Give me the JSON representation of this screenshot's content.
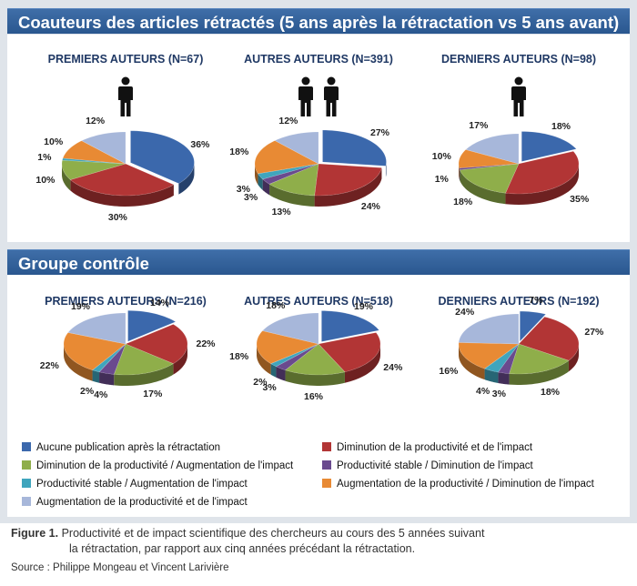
{
  "sections": {
    "retracted_title": "Coauteurs des articles rétractés (5 ans après la rétractation vs 5 ans avant)",
    "control_title": "Groupe contrôle"
  },
  "colors": [
    "#3b68ac",
    "#b23535",
    "#8fae4a",
    "#6a4a8e",
    "#3fa5bd",
    "#e88a34",
    "#a7b7da"
  ],
  "legend": [
    "Aucune publication après la rétractation",
    "Diminution de la productivité et de l'impact",
    "Diminution de la productivité / Augmentation de l'impact",
    "Productivité stable / Diminution de l'impact",
    "Productivité stable / Augmentation de l'impact",
    "Augmentation de la productivité / Diminution de l'impact",
    "Augmentation de la productivité et de l'impact"
  ],
  "chart_data": [
    {
      "type": "pie",
      "group": "Coauteurs des articles rétractés",
      "title": "PREMIERS AUTEURS (N=67)",
      "persons": 1,
      "values": [
        36,
        30,
        10,
        0,
        1,
        10,
        12
      ],
      "labels": [
        "36%",
        "30%",
        "10%",
        "",
        "1%",
        "10%",
        "12%"
      ]
    },
    {
      "type": "pie",
      "group": "Coauteurs des articles rétractés",
      "title": "AUTRES AUTEURS (N=391)",
      "persons": 2,
      "values": [
        27,
        24,
        13,
        3,
        3,
        18,
        12
      ],
      "labels": [
        "27%",
        "24%",
        "13%",
        "3%",
        "3%",
        "18%",
        "12%"
      ]
    },
    {
      "type": "pie",
      "group": "Coauteurs des articles rétractés",
      "title": "DERNIERS AUTEURS (N=98)",
      "persons": 1,
      "values": [
        18,
        35,
        18,
        1,
        0,
        10,
        17
      ],
      "labels": [
        "18%",
        "35%",
        "18%",
        "1%",
        "",
        "10%",
        "17%"
      ]
    },
    {
      "type": "pie",
      "group": "Groupe contrôle",
      "title": "PREMIERS AUTEURS (N=216)",
      "persons": 0,
      "values": [
        14,
        22,
        17,
        4,
        2,
        22,
        19
      ],
      "labels": [
        "14%",
        "22%",
        "17%",
        "4%",
        "2%",
        "22%",
        "19%"
      ]
    },
    {
      "type": "pie",
      "group": "Groupe contrôle",
      "title": "AUTRES AUTEURS (N=518)",
      "persons": 0,
      "values": [
        19,
        24,
        16,
        3,
        2,
        18,
        18
      ],
      "labels": [
        "19%",
        "24%",
        "16%",
        "3%",
        "2%",
        "18%",
        "18%"
      ]
    },
    {
      "type": "pie",
      "group": "Groupe contrôle",
      "title": "DERNIERS AUTEURS (N=192)",
      "persons": 0,
      "values": [
        7,
        27,
        18,
        3,
        4,
        16,
        24
      ],
      "labels": [
        "7%",
        "27%",
        "18%",
        "3%",
        "4%",
        "16%",
        "24%"
      ]
    }
  ],
  "caption": {
    "label": "Figure 1.",
    "line1": "Productivité et de impact scientifique des chercheurs au cours des 5 années suivant",
    "line2": "la rétractation, par rapport aux cinq années précédant la rétractation."
  },
  "source": "Source : Philippe Mongeau et Vincent Larivière"
}
